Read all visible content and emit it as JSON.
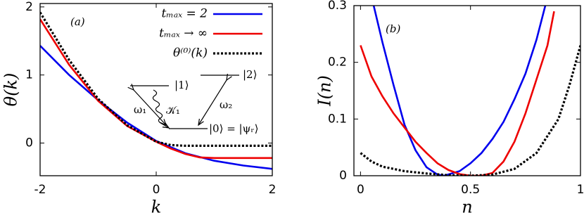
{
  "chart_data": [
    {
      "type": "line",
      "xlabel": "k",
      "ylabel": "θ(k)",
      "xlim": [
        -2,
        2
      ],
      "ylim": [
        -0.48,
        2.05
      ],
      "xticks": [
        -2,
        0,
        2
      ],
      "yticks": [
        0,
        1,
        2
      ],
      "legend": "upper right",
      "annotations": [
        "(a)",
        "|1⟩",
        "|2⟩",
        "ω₁",
        "𝒦₁",
        "ω₂",
        "|0⟩ = |ψᵣ⟩"
      ],
      "series": [
        {
          "name": "tₘₐₓ = 2",
          "color": "#0000ee",
          "style": "solid",
          "x": [
            -2,
            -1.5,
            -1,
            -0.5,
            0,
            0.5,
            1,
            1.5,
            2
          ],
          "values": [
            1.43,
            1.0,
            0.63,
            0.3,
            0.03,
            -0.15,
            -0.26,
            -0.33,
            -0.38
          ]
        },
        {
          "name": "tₘₐₓ → ∞",
          "color": "#ee0000",
          "style": "solid",
          "x": [
            -2,
            -1.5,
            -1,
            -0.5,
            0,
            0.25,
            0.5,
            0.75,
            1,
            1.5,
            2
          ],
          "values": [
            1.82,
            1.15,
            0.62,
            0.25,
            0.02,
            -0.08,
            -0.16,
            -0.21,
            -0.22,
            -0.22,
            -0.22
          ]
        },
        {
          "name": "θ⁽⁰⁾(k)",
          "color": "#000000",
          "style": "dotted",
          "x": [
            -2,
            -1.5,
            -1,
            -0.5,
            0,
            0.25,
            0.5,
            1,
            2
          ],
          "values": [
            1.92,
            1.22,
            0.65,
            0.26,
            0.02,
            -0.03,
            -0.04,
            -0.04,
            -0.04
          ]
        }
      ]
    },
    {
      "type": "line",
      "xlabel": "n",
      "ylabel": "I(n)",
      "xlim": [
        -0.03,
        1
      ],
      "ylim": [
        0,
        0.3
      ],
      "xticks": [
        0,
        0.5,
        1
      ],
      "yticks": [
        0,
        0.1,
        0.2,
        0.3
      ],
      "annotations": [
        "(b)"
      ],
      "series": [
        {
          "color": "#0000ee",
          "style": "solid",
          "x": [
            0.06,
            0.1,
            0.15,
            0.2,
            0.25,
            0.3,
            0.35,
            0.38,
            0.45,
            0.5,
            0.55,
            0.6,
            0.65,
            0.7,
            0.75,
            0.8,
            0.84
          ],
          "values": [
            0.3,
            0.235,
            0.16,
            0.09,
            0.045,
            0.015,
            0.002,
            0,
            0.008,
            0.022,
            0.04,
            0.065,
            0.095,
            0.135,
            0.18,
            0.24,
            0.3
          ]
        },
        {
          "color": "#ee0000",
          "style": "solid",
          "x": [
            0,
            0.05,
            0.1,
            0.15,
            0.2,
            0.25,
            0.3,
            0.35,
            0.4,
            0.45,
            0.5,
            0.55,
            0.6,
            0.65,
            0.7,
            0.75,
            0.8,
            0.85,
            0.88
          ],
          "values": [
            0.23,
            0.175,
            0.14,
            0.11,
            0.085,
            0.06,
            0.04,
            0.022,
            0.01,
            0.003,
            0,
            0,
            0.005,
            0.025,
            0.06,
            0.11,
            0.17,
            0.23,
            0.29
          ]
        },
        {
          "color": "#000000",
          "style": "dotted",
          "x": [
            0,
            0.05,
            0.1,
            0.2,
            0.3,
            0.4,
            0.5,
            0.6,
            0.7,
            0.8,
            0.9,
            0.95,
            1
          ],
          "values": [
            0.04,
            0.025,
            0.016,
            0.008,
            0.004,
            0.001,
            0,
            0.002,
            0.012,
            0.04,
            0.1,
            0.16,
            0.23
          ]
        }
      ]
    }
  ]
}
